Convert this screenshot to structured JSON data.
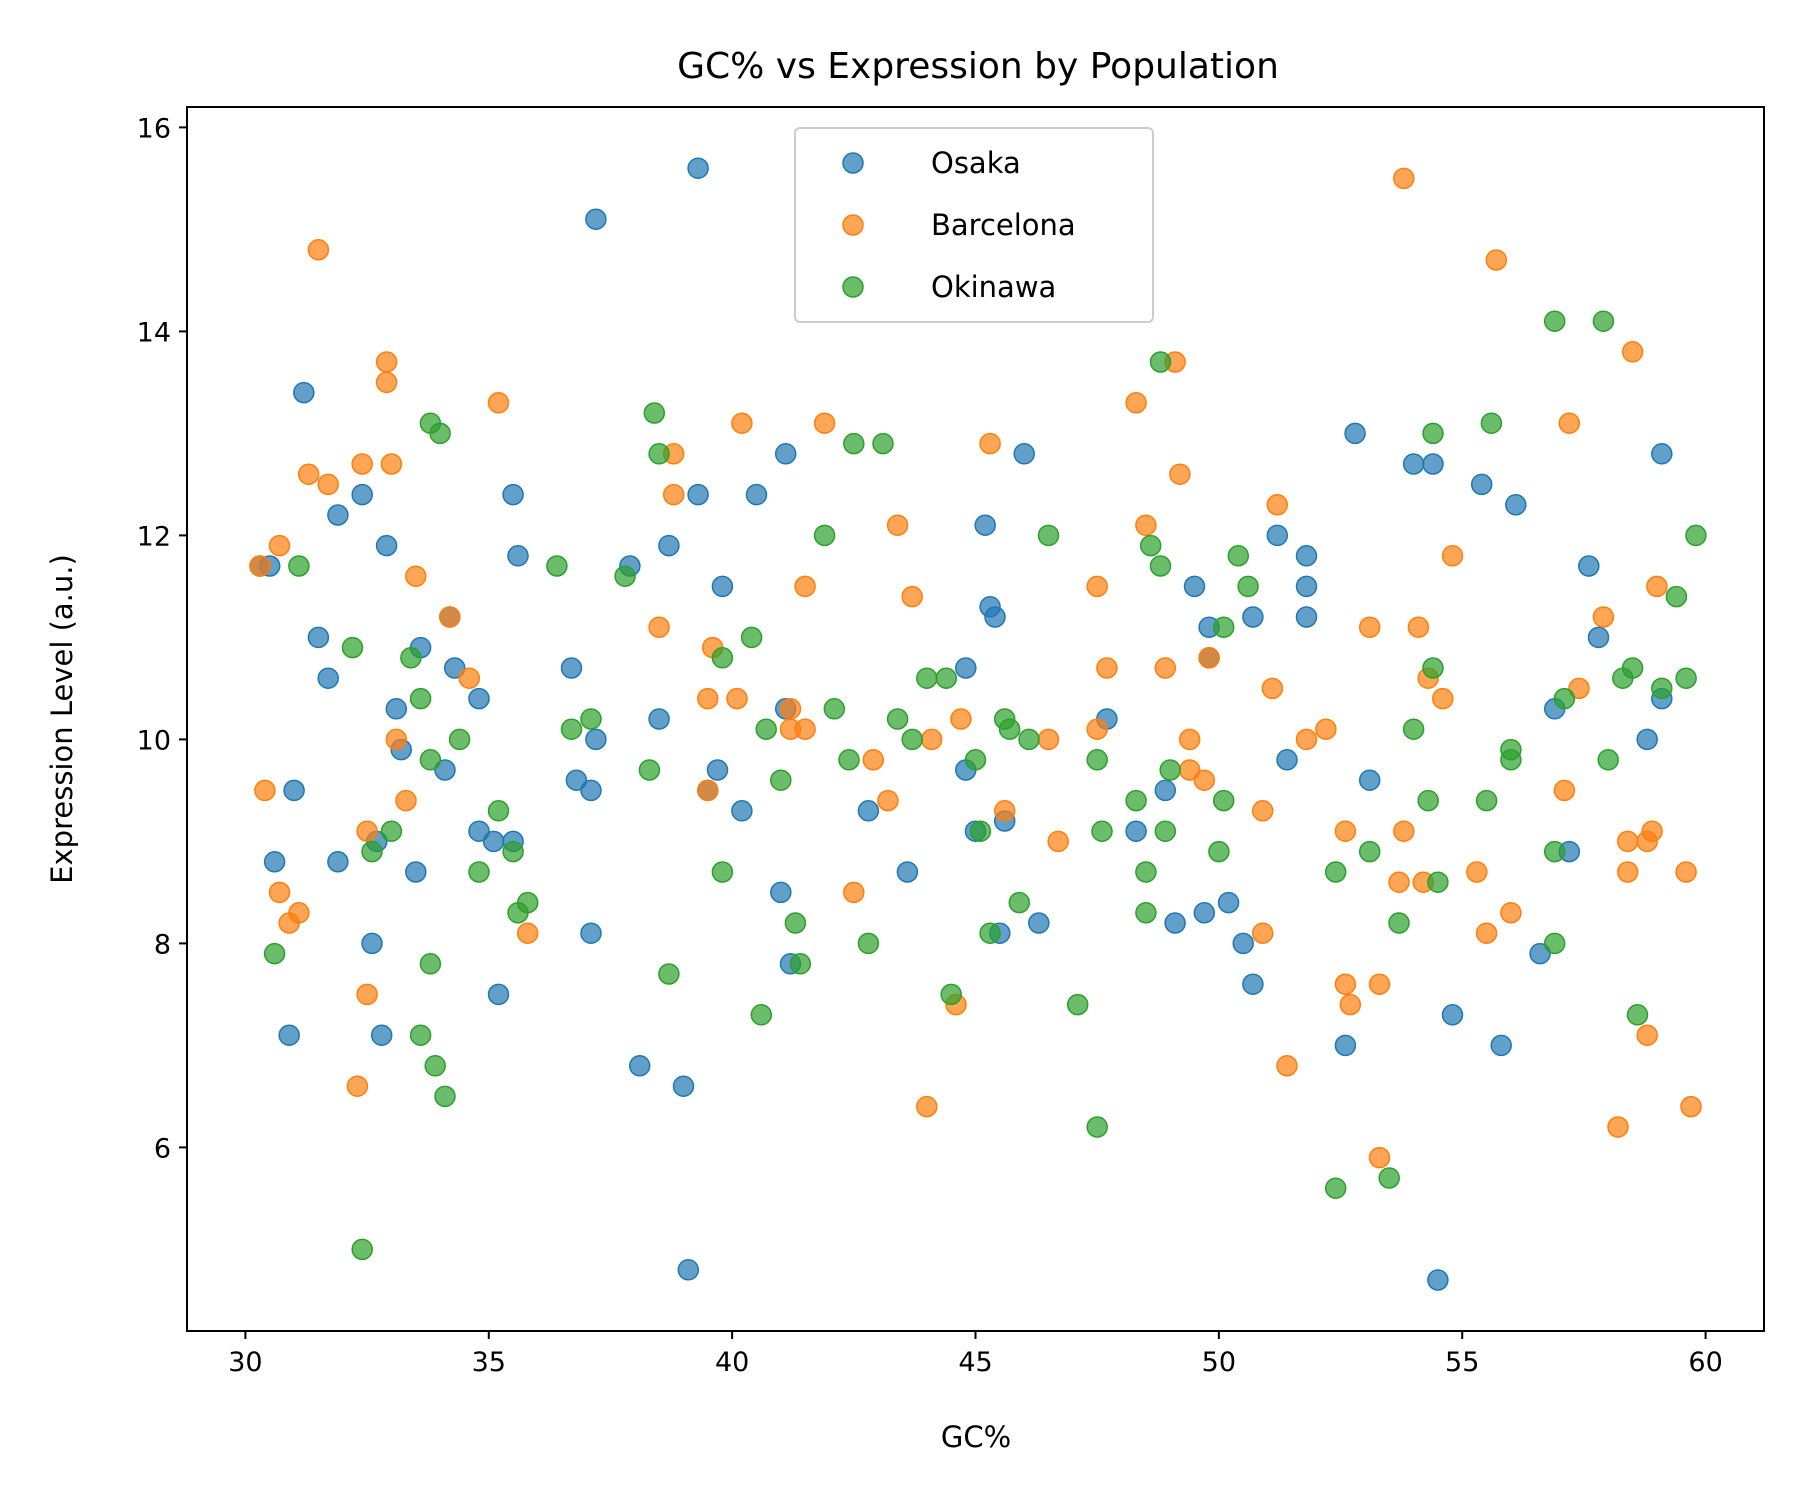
{
  "chart_data": {
    "type": "scatter",
    "title": "GC% vs Expression by Population",
    "xlabel": "GC%",
    "ylabel": "Expression Level (a.u.)",
    "xlim": [
      28.8,
      61.2
    ],
    "ylim": [
      4.2,
      16.2
    ],
    "xticks": [
      30,
      35,
      40,
      45,
      50,
      55,
      60
    ],
    "yticks": [
      6,
      8,
      10,
      12,
      14,
      16
    ],
    "grid": false,
    "legend_position": "top-center",
    "series": [
      {
        "name": "Osaka",
        "color": "#1f77b4",
        "points": [
          [
            30.3,
            11.7
          ],
          [
            30.5,
            11.7
          ],
          [
            30.6,
            8.8
          ],
          [
            30.9,
            7.1
          ],
          [
            31.0,
            9.5
          ],
          [
            31.2,
            13.4
          ],
          [
            31.5,
            11.0
          ],
          [
            31.7,
            10.6
          ],
          [
            31.9,
            12.2
          ],
          [
            31.9,
            8.8
          ],
          [
            32.4,
            12.4
          ],
          [
            32.6,
            8.0
          ],
          [
            32.7,
            9.0
          ],
          [
            32.8,
            7.1
          ],
          [
            32.9,
            11.9
          ],
          [
            33.1,
            10.3
          ],
          [
            33.2,
            9.9
          ],
          [
            33.5,
            8.7
          ],
          [
            33.6,
            10.9
          ],
          [
            34.1,
            9.7
          ],
          [
            34.2,
            11.2
          ],
          [
            34.3,
            10.7
          ],
          [
            34.8,
            10.4
          ],
          [
            34.8,
            9.1
          ],
          [
            35.1,
            9.0
          ],
          [
            35.2,
            7.5
          ],
          [
            35.5,
            9.0
          ],
          [
            35.5,
            12.4
          ],
          [
            35.6,
            11.8
          ],
          [
            36.7,
            10.7
          ],
          [
            36.8,
            9.6
          ],
          [
            37.1,
            9.5
          ],
          [
            37.1,
            8.1
          ],
          [
            37.2,
            10.0
          ],
          [
            37.2,
            15.1
          ],
          [
            37.9,
            11.7
          ],
          [
            38.1,
            6.8
          ],
          [
            38.5,
            10.2
          ],
          [
            38.7,
            11.9
          ],
          [
            39.0,
            6.6
          ],
          [
            39.1,
            4.8
          ],
          [
            39.3,
            12.4
          ],
          [
            39.3,
            15.6
          ],
          [
            39.5,
            9.5
          ],
          [
            39.7,
            9.7
          ],
          [
            39.8,
            11.5
          ],
          [
            40.2,
            9.3
          ],
          [
            40.5,
            12.4
          ],
          [
            41.0,
            8.5
          ],
          [
            41.1,
            10.3
          ],
          [
            41.1,
            12.8
          ],
          [
            41.2,
            7.8
          ],
          [
            42.8,
            9.3
          ],
          [
            43.6,
            8.7
          ],
          [
            44.8,
            9.7
          ],
          [
            44.8,
            10.7
          ],
          [
            45.0,
            9.1
          ],
          [
            45.2,
            12.1
          ],
          [
            45.3,
            11.3
          ],
          [
            45.4,
            11.2
          ],
          [
            45.5,
            8.1
          ],
          [
            45.6,
            9.2
          ],
          [
            46.0,
            12.8
          ],
          [
            46.3,
            8.2
          ],
          [
            47.7,
            10.2
          ],
          [
            48.3,
            9.1
          ],
          [
            48.9,
            9.5
          ],
          [
            49.1,
            8.2
          ],
          [
            49.5,
            11.5
          ],
          [
            49.7,
            8.3
          ],
          [
            49.8,
            11.1
          ],
          [
            49.8,
            10.8
          ],
          [
            50.2,
            8.4
          ],
          [
            50.5,
            8.0
          ],
          [
            50.7,
            11.2
          ],
          [
            50.7,
            7.6
          ],
          [
            51.2,
            12.0
          ],
          [
            51.4,
            9.8
          ],
          [
            51.8,
            11.2
          ],
          [
            51.8,
            11.5
          ],
          [
            51.8,
            11.8
          ],
          [
            52.6,
            7.0
          ],
          [
            52.8,
            13.0
          ],
          [
            53.1,
            9.6
          ],
          [
            54.0,
            12.7
          ],
          [
            54.4,
            12.7
          ],
          [
            54.5,
            4.7
          ],
          [
            54.8,
            7.3
          ],
          [
            55.4,
            12.5
          ],
          [
            55.8,
            7.0
          ],
          [
            56.1,
            12.3
          ],
          [
            56.6,
            7.9
          ],
          [
            56.9,
            10.3
          ],
          [
            57.2,
            8.9
          ],
          [
            57.6,
            11.7
          ],
          [
            57.8,
            11.0
          ],
          [
            58.8,
            10.0
          ],
          [
            59.1,
            10.4
          ],
          [
            59.1,
            12.8
          ]
        ]
      },
      {
        "name": "Barcelona",
        "color": "#ff7f0e",
        "points": [
          [
            30.3,
            11.7
          ],
          [
            30.4,
            9.5
          ],
          [
            30.7,
            11.9
          ],
          [
            30.7,
            8.5
          ],
          [
            30.9,
            8.2
          ],
          [
            31.1,
            8.3
          ],
          [
            31.3,
            12.6
          ],
          [
            31.5,
            14.8
          ],
          [
            31.7,
            12.5
          ],
          [
            32.3,
            6.6
          ],
          [
            32.4,
            12.7
          ],
          [
            32.5,
            9.1
          ],
          [
            32.5,
            7.5
          ],
          [
            32.9,
            13.5
          ],
          [
            32.9,
            13.7
          ],
          [
            33.0,
            12.7
          ],
          [
            33.1,
            10.0
          ],
          [
            33.3,
            9.4
          ],
          [
            33.5,
            11.6
          ],
          [
            34.2,
            11.2
          ],
          [
            34.6,
            10.6
          ],
          [
            35.2,
            13.3
          ],
          [
            35.8,
            8.1
          ],
          [
            38.5,
            11.1
          ],
          [
            38.8,
            12.4
          ],
          [
            38.8,
            12.8
          ],
          [
            39.5,
            10.4
          ],
          [
            39.5,
            9.5
          ],
          [
            39.6,
            10.9
          ],
          [
            40.1,
            10.4
          ],
          [
            40.2,
            13.1
          ],
          [
            41.2,
            10.3
          ],
          [
            41.2,
            10.1
          ],
          [
            41.5,
            10.1
          ],
          [
            41.5,
            11.5
          ],
          [
            41.9,
            13.1
          ],
          [
            42.5,
            8.5
          ],
          [
            42.9,
            9.8
          ],
          [
            43.2,
            9.4
          ],
          [
            43.4,
            12.1
          ],
          [
            43.7,
            11.4
          ],
          [
            44.0,
            6.4
          ],
          [
            44.1,
            10.0
          ],
          [
            44.6,
            7.4
          ],
          [
            44.7,
            10.2
          ],
          [
            45.3,
            12.9
          ],
          [
            45.6,
            9.3
          ],
          [
            46.5,
            10.0
          ],
          [
            46.7,
            9.0
          ],
          [
            47.5,
            11.5
          ],
          [
            47.5,
            10.1
          ],
          [
            47.7,
            10.7
          ],
          [
            48.3,
            13.3
          ],
          [
            48.5,
            12.1
          ],
          [
            48.9,
            10.7
          ],
          [
            49.1,
            13.7
          ],
          [
            49.2,
            12.6
          ],
          [
            49.4,
            10.0
          ],
          [
            49.4,
            9.7
          ],
          [
            49.7,
            9.6
          ],
          [
            49.8,
            10.8
          ],
          [
            50.9,
            8.1
          ],
          [
            50.9,
            9.3
          ],
          [
            51.1,
            10.5
          ],
          [
            51.2,
            12.3
          ],
          [
            51.4,
            6.8
          ],
          [
            51.8,
            10.0
          ],
          [
            52.2,
            10.1
          ],
          [
            52.6,
            7.6
          ],
          [
            52.6,
            9.1
          ],
          [
            52.7,
            7.4
          ],
          [
            53.1,
            11.1
          ],
          [
            53.3,
            7.6
          ],
          [
            53.3,
            5.9
          ],
          [
            53.7,
            8.6
          ],
          [
            53.8,
            15.5
          ],
          [
            53.8,
            9.1
          ],
          [
            54.1,
            11.1
          ],
          [
            54.2,
            8.6
          ],
          [
            54.3,
            10.6
          ],
          [
            54.6,
            10.4
          ],
          [
            54.8,
            11.8
          ],
          [
            55.3,
            8.7
          ],
          [
            55.5,
            8.1
          ],
          [
            55.7,
            14.7
          ],
          [
            56.0,
            8.3
          ],
          [
            57.1,
            9.5
          ],
          [
            57.2,
            13.1
          ],
          [
            57.4,
            10.5
          ],
          [
            57.9,
            11.2
          ],
          [
            58.2,
            6.2
          ],
          [
            58.4,
            9.0
          ],
          [
            58.4,
            8.7
          ],
          [
            58.5,
            13.8
          ],
          [
            58.8,
            9.0
          ],
          [
            58.8,
            7.1
          ],
          [
            58.9,
            9.1
          ],
          [
            59.0,
            11.5
          ],
          [
            59.6,
            8.7
          ],
          [
            59.7,
            6.4
          ]
        ]
      },
      {
        "name": "Okinawa",
        "color": "#2ca02c",
        "points": [
          [
            30.6,
            7.9
          ],
          [
            31.1,
            11.7
          ],
          [
            32.2,
            10.9
          ],
          [
            32.4,
            5.0
          ],
          [
            32.6,
            8.9
          ],
          [
            33.0,
            9.1
          ],
          [
            33.4,
            10.8
          ],
          [
            33.6,
            10.4
          ],
          [
            33.6,
            7.1
          ],
          [
            33.8,
            13.1
          ],
          [
            33.8,
            9.8
          ],
          [
            33.8,
            7.8
          ],
          [
            33.9,
            6.8
          ],
          [
            34.0,
            13.0
          ],
          [
            34.1,
            6.5
          ],
          [
            34.4,
            10.0
          ],
          [
            34.8,
            8.7
          ],
          [
            35.2,
            9.3
          ],
          [
            35.5,
            8.9
          ],
          [
            35.6,
            8.3
          ],
          [
            35.8,
            8.4
          ],
          [
            36.4,
            11.7
          ],
          [
            36.7,
            10.1
          ],
          [
            37.1,
            10.2
          ],
          [
            37.8,
            11.6
          ],
          [
            38.3,
            9.7
          ],
          [
            38.4,
            13.2
          ],
          [
            38.5,
            12.8
          ],
          [
            38.7,
            7.7
          ],
          [
            39.8,
            10.8
          ],
          [
            39.8,
            8.7
          ],
          [
            40.4,
            11.0
          ],
          [
            40.6,
            7.3
          ],
          [
            40.7,
            10.1
          ],
          [
            41.0,
            9.6
          ],
          [
            41.3,
            8.2
          ],
          [
            41.4,
            7.8
          ],
          [
            41.9,
            12.0
          ],
          [
            42.1,
            10.3
          ],
          [
            42.4,
            9.8
          ],
          [
            42.5,
            12.9
          ],
          [
            42.8,
            8.0
          ],
          [
            43.1,
            12.9
          ],
          [
            43.4,
            10.2
          ],
          [
            43.7,
            10.0
          ],
          [
            44.0,
            10.6
          ],
          [
            44.4,
            10.6
          ],
          [
            44.5,
            7.5
          ],
          [
            45.0,
            9.8
          ],
          [
            45.1,
            9.1
          ],
          [
            45.3,
            8.1
          ],
          [
            45.6,
            10.2
          ],
          [
            45.7,
            10.1
          ],
          [
            45.9,
            8.4
          ],
          [
            46.1,
            10.0
          ],
          [
            46.5,
            12.0
          ],
          [
            47.1,
            7.4
          ],
          [
            47.5,
            9.8
          ],
          [
            47.5,
            6.2
          ],
          [
            47.6,
            9.1
          ],
          [
            48.3,
            9.4
          ],
          [
            48.5,
            8.7
          ],
          [
            48.5,
            8.3
          ],
          [
            48.6,
            11.9
          ],
          [
            48.8,
            11.7
          ],
          [
            48.8,
            13.7
          ],
          [
            48.9,
            9.1
          ],
          [
            49.0,
            9.7
          ],
          [
            50.0,
            8.9
          ],
          [
            50.1,
            9.4
          ],
          [
            50.1,
            11.1
          ],
          [
            50.4,
            11.8
          ],
          [
            50.6,
            11.5
          ],
          [
            52.4,
            8.7
          ],
          [
            52.4,
            5.6
          ],
          [
            53.1,
            8.9
          ],
          [
            53.5,
            5.7
          ],
          [
            53.7,
            8.2
          ],
          [
            54.0,
            10.1
          ],
          [
            54.3,
            9.4
          ],
          [
            54.4,
            13.0
          ],
          [
            54.4,
            10.7
          ],
          [
            54.5,
            8.6
          ],
          [
            55.5,
            9.4
          ],
          [
            55.6,
            13.1
          ],
          [
            56.0,
            9.9
          ],
          [
            56.0,
            9.8
          ],
          [
            56.9,
            14.1
          ],
          [
            56.9,
            8.9
          ],
          [
            56.9,
            8.0
          ],
          [
            57.1,
            10.4
          ],
          [
            57.9,
            14.1
          ],
          [
            58.0,
            9.8
          ],
          [
            58.3,
            10.6
          ],
          [
            58.5,
            10.7
          ],
          [
            58.6,
            7.3
          ],
          [
            59.1,
            10.5
          ],
          [
            59.4,
            11.4
          ],
          [
            59.6,
            10.6
          ],
          [
            59.8,
            12.0
          ]
        ]
      }
    ]
  }
}
